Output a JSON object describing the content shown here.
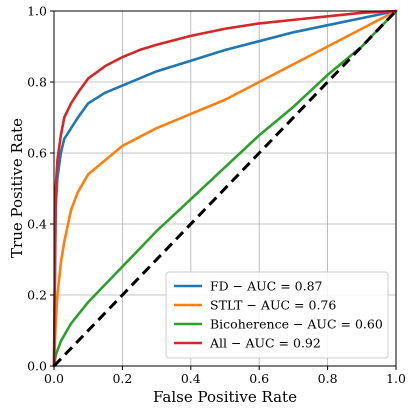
{
  "chart_data": {
    "type": "line",
    "title": "",
    "xlabel": "False Positive Rate",
    "ylabel": "True Positive Rate",
    "xlim": [
      0,
      1
    ],
    "ylim": [
      0,
      1
    ],
    "xticks": [
      "0.0",
      "0.2",
      "0.4",
      "0.6",
      "0.8",
      "1.0"
    ],
    "yticks": [
      "0.0",
      "0.2",
      "0.4",
      "0.6",
      "0.8",
      "1.0"
    ],
    "grid": true,
    "legend_position": "bottom-right",
    "series": [
      {
        "name": "FD − AUC = 0.87",
        "color": "#1f77b4",
        "x": [
          0,
          0.005,
          0.01,
          0.02,
          0.03,
          0.05,
          0.07,
          0.1,
          0.15,
          0.2,
          0.25,
          0.3,
          0.4,
          0.5,
          0.6,
          0.7,
          0.8,
          0.9,
          1.0
        ],
        "y": [
          0,
          0.45,
          0.53,
          0.6,
          0.64,
          0.67,
          0.7,
          0.74,
          0.77,
          0.79,
          0.81,
          0.83,
          0.86,
          0.89,
          0.915,
          0.94,
          0.96,
          0.98,
          1.0
        ]
      },
      {
        "name": "STLT − AUC = 0.76",
        "color": "#ff7f0e",
        "x": [
          0,
          0.005,
          0.01,
          0.02,
          0.03,
          0.05,
          0.07,
          0.1,
          0.15,
          0.2,
          0.3,
          0.4,
          0.5,
          0.6,
          0.7,
          0.8,
          0.9,
          1.0
        ],
        "y": [
          0,
          0.12,
          0.2,
          0.29,
          0.35,
          0.44,
          0.49,
          0.54,
          0.58,
          0.62,
          0.67,
          0.71,
          0.75,
          0.8,
          0.85,
          0.9,
          0.95,
          1.0
        ]
      },
      {
        "name": "Bicoherence − AUC = 0.60",
        "color": "#2ca02c",
        "x": [
          0,
          0.005,
          0.02,
          0.05,
          0.1,
          0.15,
          0.2,
          0.25,
          0.3,
          0.4,
          0.5,
          0.6,
          0.7,
          0.8,
          0.9,
          1.0
        ],
        "y": [
          0,
          0.03,
          0.07,
          0.12,
          0.18,
          0.23,
          0.28,
          0.33,
          0.38,
          0.47,
          0.56,
          0.65,
          0.73,
          0.82,
          0.9,
          1.0
        ]
      },
      {
        "name": "All − AUC = 0.92",
        "color": "#d62728",
        "x": [
          0,
          0.005,
          0.01,
          0.02,
          0.03,
          0.05,
          0.07,
          0.1,
          0.15,
          0.2,
          0.25,
          0.3,
          0.4,
          0.5,
          0.6,
          0.7,
          0.8,
          0.9,
          1.0
        ],
        "y": [
          0,
          0.5,
          0.58,
          0.65,
          0.7,
          0.74,
          0.77,
          0.81,
          0.845,
          0.87,
          0.89,
          0.905,
          0.93,
          0.95,
          0.965,
          0.975,
          0.985,
          0.995,
          1.0
        ]
      },
      {
        "name": "",
        "color": "#000000",
        "dashed": true,
        "x": [
          0,
          1
        ],
        "y": [
          0,
          1
        ]
      }
    ]
  }
}
